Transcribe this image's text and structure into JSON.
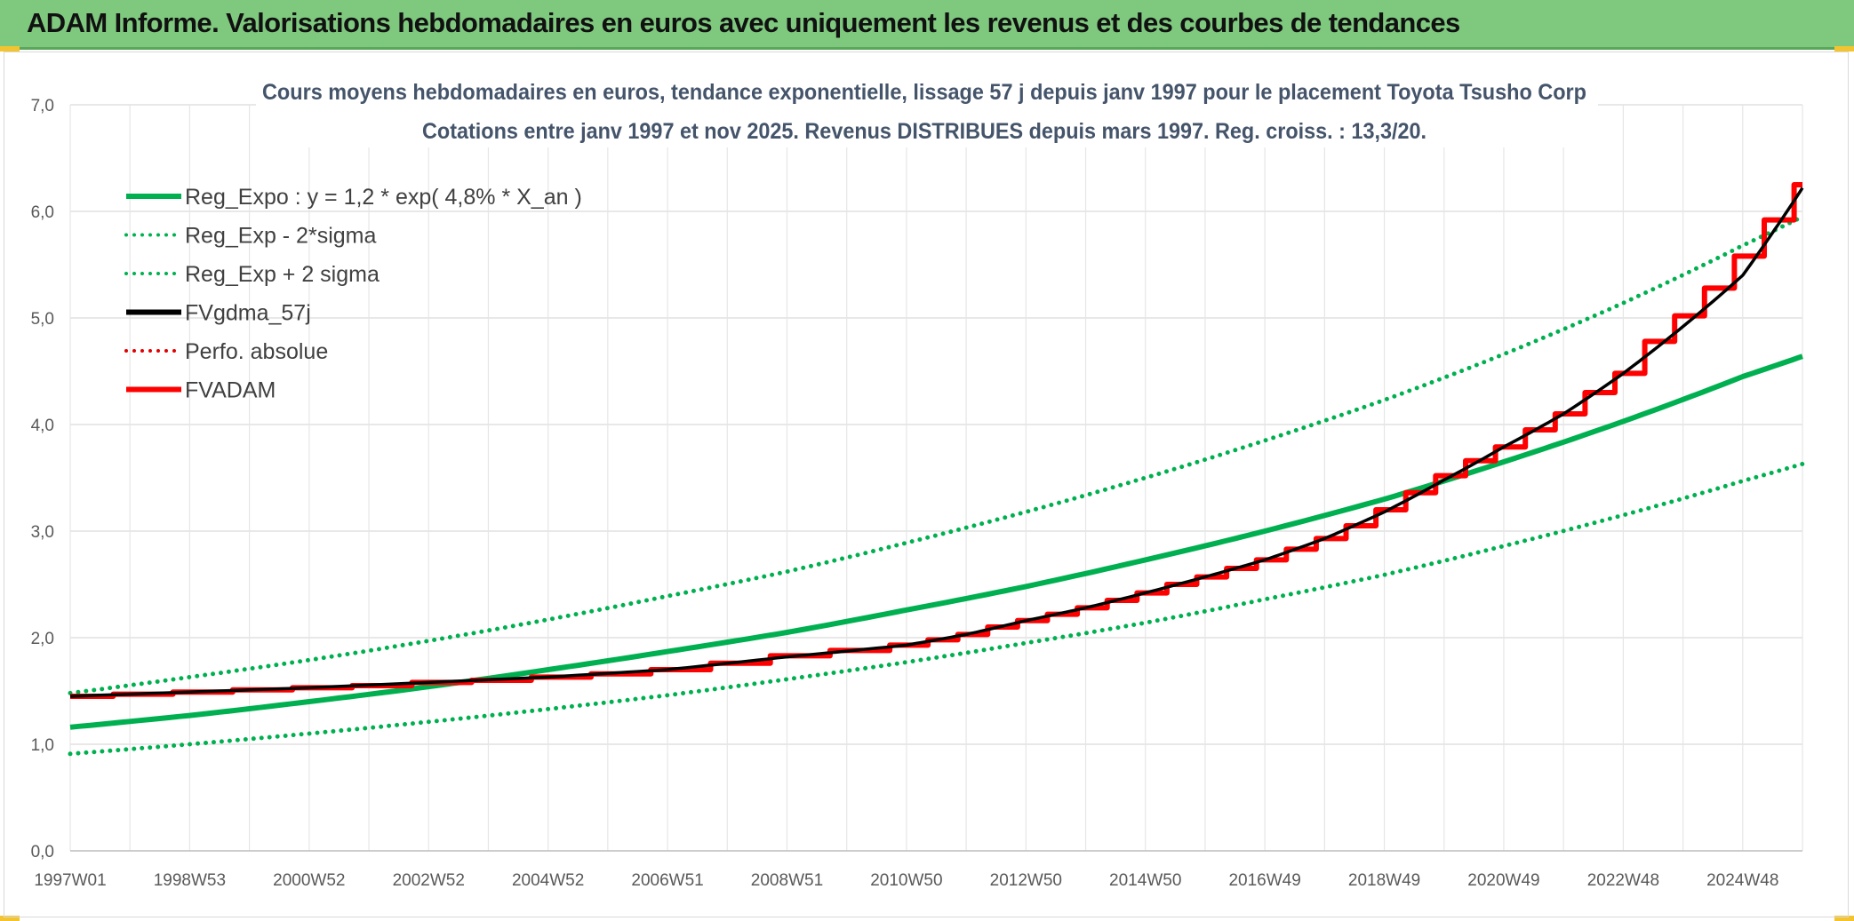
{
  "header": {
    "title": "ADAM Informe. Valorisations hebdomadaires en euros avec uniquement les revenus et des courbes de tendances"
  },
  "chart_data": {
    "type": "line",
    "title": "Cours moyens hebdomadaires en euros, tendance exponentielle, lissage 57 j depuis janv 1997 pour le placement Toyota Tsusho Corp",
    "subtitle": "Cotations entre janv 1997 et nov 2025. Revenus DISTRIBUES depuis mars 1997. Reg. croiss. : 13,3/20.",
    "x_tick_labels": [
      "1997W01",
      "1998W53",
      "2000W52",
      "2002W52",
      "2004W52",
      "2006W51",
      "2008W51",
      "2010W50",
      "2012W50",
      "2014W50",
      "2016W49",
      "2018W49",
      "2020W49",
      "2022W48",
      "2024W48"
    ],
    "x_tick_years": [
      1997,
      1999,
      2001,
      2003,
      2005,
      2007,
      2009,
      2011,
      2013,
      2015,
      2017,
      2019,
      2021,
      2023,
      2025
    ],
    "xlim": [
      1997.0,
      2026.0
    ],
    "ylim": [
      0,
      7
    ],
    "y_ticks": [
      "0,0",
      "1,0",
      "2,0",
      "3,0",
      "4,0",
      "5,0",
      "6,0",
      "7,0"
    ],
    "grid": true,
    "legend_position": "top-left",
    "series": [
      {
        "name": "Reg_Expo : y = 1,2 * exp( 4,8% *  X_an )",
        "color": "#00b050",
        "style": "solid",
        "x": [
          1997,
          1999,
          2001,
          2003,
          2005,
          2007,
          2009,
          2011,
          2013,
          2015,
          2017,
          2019,
          2021,
          2023,
          2025,
          2026
        ],
        "y": [
          1.16,
          1.27,
          1.4,
          1.54,
          1.7,
          1.87,
          2.05,
          2.26,
          2.48,
          2.73,
          3.0,
          3.3,
          3.65,
          4.03,
          4.45,
          4.64
        ]
      },
      {
        "name": "Reg_Exp - 2*sigma",
        "color": "#00b050",
        "style": "dotted",
        "x": [
          1997,
          1999,
          2001,
          2003,
          2005,
          2007,
          2009,
          2011,
          2013,
          2015,
          2017,
          2019,
          2021,
          2023,
          2025,
          2026
        ],
        "y": [
          0.91,
          1.0,
          1.1,
          1.21,
          1.33,
          1.46,
          1.61,
          1.77,
          1.95,
          2.14,
          2.36,
          2.59,
          2.86,
          3.15,
          3.47,
          3.63
        ]
      },
      {
        "name": "Reg_Exp + 2 sigma",
        "color": "#00b050",
        "style": "dotted",
        "x": [
          1997,
          1999,
          2001,
          2003,
          2005,
          2007,
          2009,
          2011,
          2013,
          2015,
          2017,
          2019,
          2021,
          2023,
          2025,
          2026
        ],
        "y": [
          1.48,
          1.63,
          1.79,
          1.97,
          2.17,
          2.39,
          2.62,
          2.89,
          3.18,
          3.5,
          3.85,
          4.23,
          4.66,
          5.14,
          5.68,
          5.95
        ]
      },
      {
        "name": "FVgdma_57j",
        "color": "#000000",
        "style": "solid",
        "x": [
          1997,
          1999,
          2001,
          2003,
          2005,
          2007,
          2009,
          2011,
          2012,
          2013,
          2014,
          2015,
          2016,
          2017,
          2018,
          2019,
          2020,
          2021,
          2022,
          2023,
          2024,
          2025,
          2025.5,
          2026
        ],
        "y": [
          1.45,
          1.49,
          1.53,
          1.58,
          1.63,
          1.7,
          1.82,
          1.93,
          2.03,
          2.16,
          2.28,
          2.42,
          2.57,
          2.73,
          2.93,
          3.18,
          3.48,
          3.79,
          4.1,
          4.48,
          4.92,
          5.4,
          5.8,
          6.22
        ]
      },
      {
        "name": "Perfo. absolue",
        "color": "#e00000",
        "style": "dotted",
        "x": [],
        "y": []
      },
      {
        "name": "FVADAM",
        "color": "#ff0000",
        "style": "step",
        "x": [
          1997,
          1998,
          1999,
          2000,
          2001,
          2002,
          2003,
          2004,
          2005,
          2006,
          2007,
          2008,
          2009,
          2010,
          2011,
          2011.5,
          2012,
          2012.5,
          2013,
          2013.5,
          2014,
          2014.5,
          2015,
          2015.5,
          2016,
          2016.5,
          2017,
          2017.5,
          2018,
          2018.5,
          2019,
          2019.5,
          2020,
          2020.5,
          2021,
          2021.5,
          2022,
          2022.5,
          2023,
          2023.5,
          2024,
          2024.5,
          2025,
          2025.5,
          2026
        ],
        "y": [
          1.45,
          1.47,
          1.49,
          1.51,
          1.53,
          1.55,
          1.58,
          1.6,
          1.63,
          1.66,
          1.7,
          1.76,
          1.83,
          1.88,
          1.93,
          1.98,
          2.03,
          2.1,
          2.16,
          2.22,
          2.28,
          2.35,
          2.42,
          2.5,
          2.57,
          2.65,
          2.73,
          2.83,
          2.93,
          3.05,
          3.2,
          3.36,
          3.52,
          3.66,
          3.79,
          3.95,
          4.1,
          4.3,
          4.48,
          4.78,
          5.02,
          5.28,
          5.58,
          5.92,
          6.25
        ]
      }
    ]
  }
}
